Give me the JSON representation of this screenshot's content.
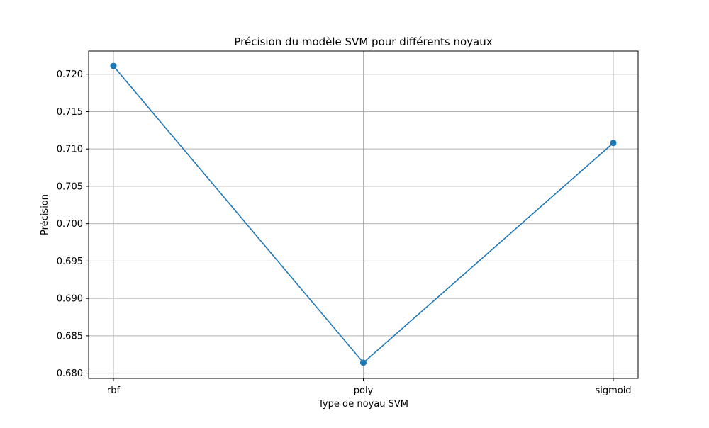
{
  "chart_data": {
    "type": "line",
    "title": "Précision du modèle SVM pour différents noyaux",
    "xlabel": "Type de noyau SVM",
    "ylabel": "Précision",
    "categories": [
      "rbf",
      "poly",
      "sigmoid"
    ],
    "series": [
      {
        "values": [
          0.7211,
          0.6814,
          0.7108
        ],
        "color": "#1f77b4",
        "marker": "circle"
      }
    ],
    "yticks": [
      "0.680",
      "0.685",
      "0.690",
      "0.695",
      "0.700",
      "0.705",
      "0.710",
      "0.715",
      "0.720"
    ],
    "ylim": [
      0.6793,
      0.7231
    ],
    "grid": true,
    "grid_color": "#b0b0b0"
  }
}
